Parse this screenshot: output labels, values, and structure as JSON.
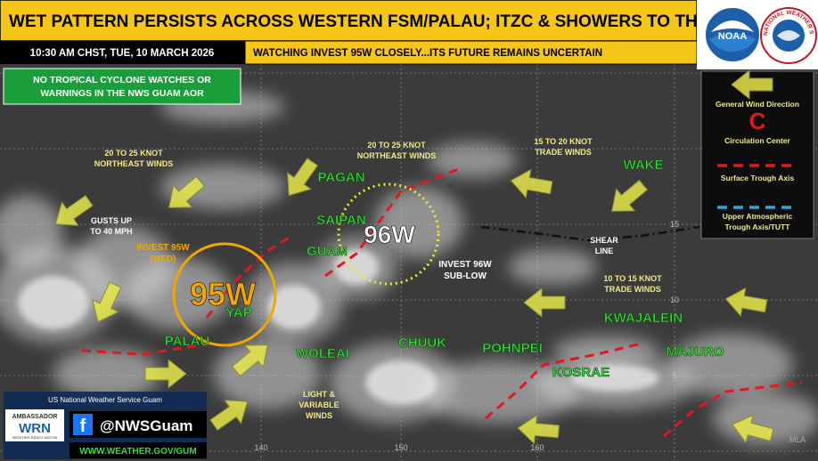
{
  "header": {
    "title": "WET PATTERN PERSISTS ACROSS WESTERN FSM/PALAU; ITZC & SHOWERS TO THE EAST",
    "time": "10:30 AM CHST, TUE, 10 MARCH 2026",
    "outlook": "WATCHING INVEST 95W CLOSELY...ITS FUTURE REMAINS UNCERTAIN",
    "alert": [
      "NO TROPICAL CYCLONE WATCHES OR",
      "WARNINGS IN THE NWS GUAM AOR"
    ]
  },
  "logos": {
    "noaa": "NOAA",
    "nws": "NATIONAL WEATHER SERVICE"
  },
  "legend": {
    "wind": "General Wind Direction",
    "center_symbol": "C",
    "center": "Circulation Center",
    "surface_trough": "Surface Trough Axis",
    "upper_trough": [
      "Upper Atmospheric",
      "Trough Axis/TUTT"
    ]
  },
  "places": [
    "PAGAN",
    "SAIPAN",
    "GUAM",
    "WAKE",
    "YAP",
    "PALAU",
    "WOLEAI",
    "CHUUK",
    "POHNPEI",
    "KOSRAE",
    "KWAJALEIN",
    "MAJURO"
  ],
  "systems": [
    {
      "id": "95W",
      "label": [
        "INVEST 95W",
        "(MED)"
      ]
    },
    {
      "id": "96W",
      "label": [
        "INVEST 96W",
        "SUB-LOW"
      ]
    }
  ],
  "notes": [
    [
      "20 TO 25 KNOT",
      "NORTHEAST WINDS"
    ],
    [
      "20 TO 25 KNOT",
      "NORTHEAST WINDS"
    ],
    [
      "15 TO 20 KNOT",
      "TRADE WINDS"
    ],
    [
      "GUSTS UP",
      "TO 40 MPH"
    ],
    [
      "SHEAR",
      "LINE"
    ],
    [
      "10 TO 15 KNOT",
      "TRADE WINDS"
    ],
    [
      "LIGHT &",
      "VARIABLE",
      "WINDS"
    ]
  ],
  "grid_labels": {
    "lon": [
      "140",
      "150",
      "160"
    ],
    "lat": [
      "5",
      "10",
      "15"
    ]
  },
  "footer": {
    "office": "US National Weather Service Guam",
    "ambassador": "AMBASSADOR",
    "wrn": "WRN",
    "wrn_tagline": "WEATHER-READY NATION",
    "facebook_icon": "f",
    "handle": "@NWSGuam",
    "url": "WWW.WEATHER.GOV/GUM"
  },
  "credit": "MLA"
}
